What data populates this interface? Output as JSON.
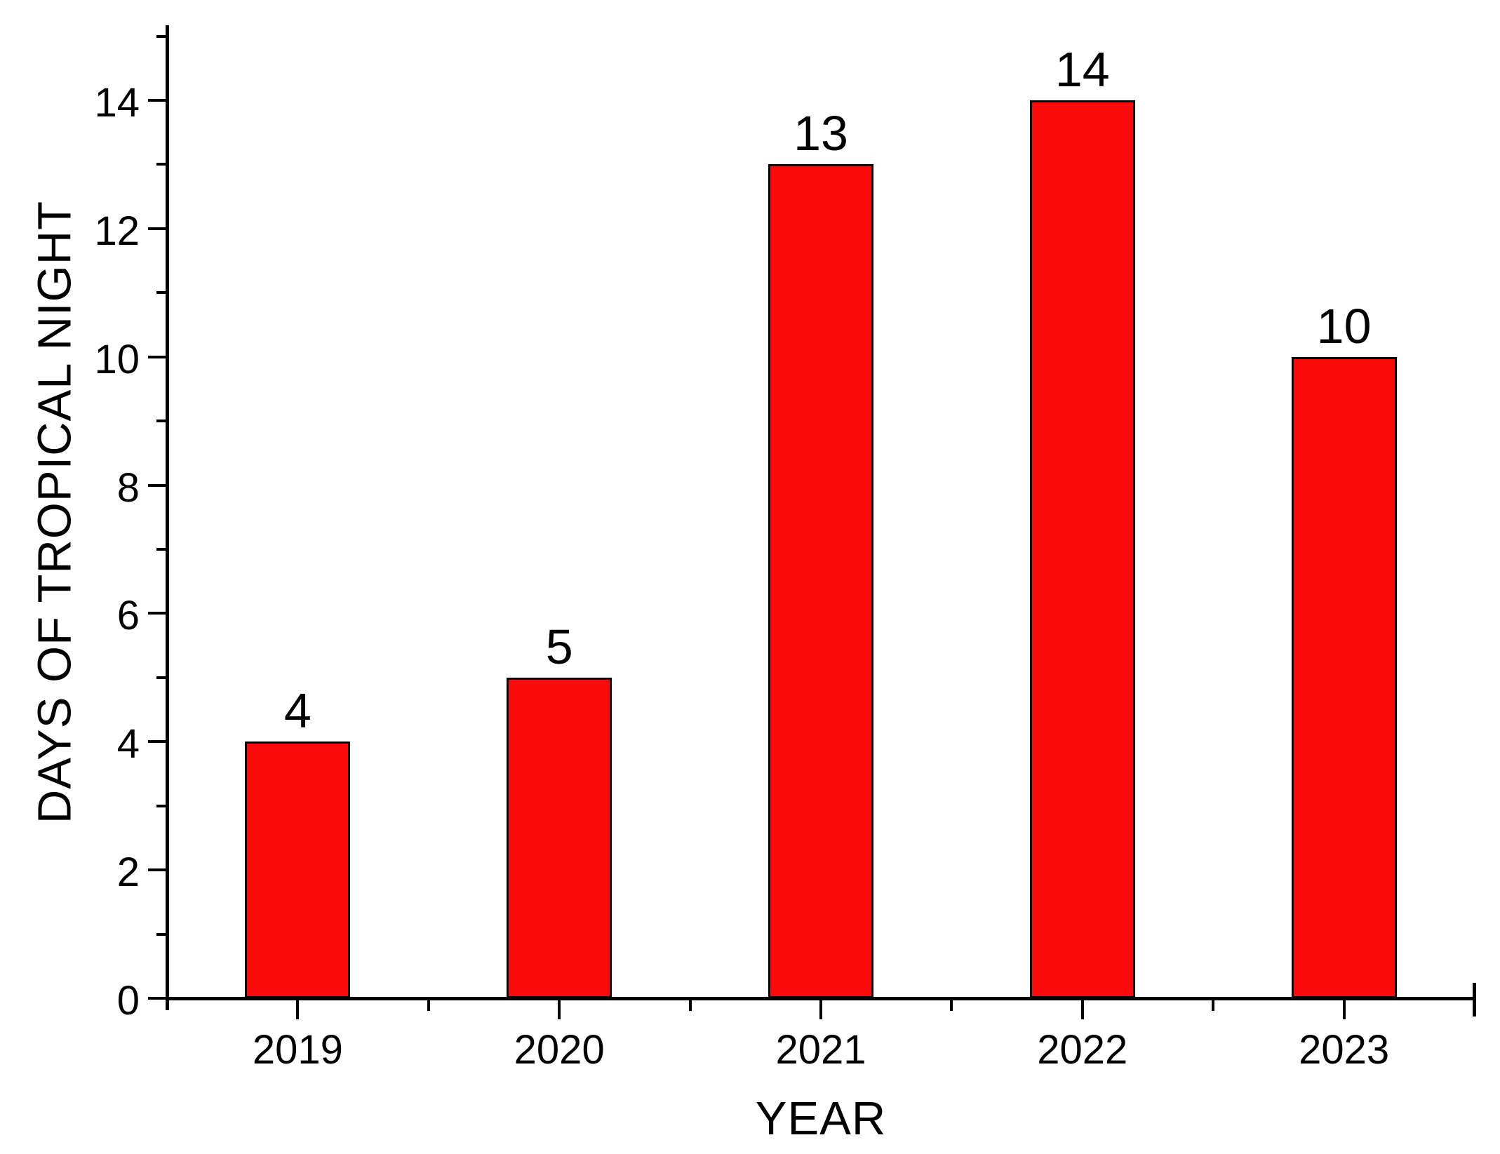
{
  "chart_data": {
    "type": "bar",
    "title": "",
    "xlabel": "YEAR",
    "ylabel": "DAYS OF TROPICAL NIGHT",
    "categories": [
      "2019",
      "2020",
      "2021",
      "2022",
      "2023"
    ],
    "values": [
      4,
      5,
      13,
      14,
      10
    ],
    "data_labels": [
      "4",
      "5",
      "13",
      "14",
      "10"
    ],
    "ylim": [
      0,
      15.15
    ],
    "yticks_major": [
      0,
      2,
      4,
      6,
      8,
      10,
      12,
      14
    ],
    "yticks_minor": [
      1,
      3,
      5,
      7,
      9,
      11,
      13,
      15
    ],
    "grid": false,
    "legend": null,
    "bar_color": "#fa0a0a",
    "bar_border_color": "#000000",
    "axis_color": "#000000",
    "text_color": "#000000",
    "background_color": "#ffffff"
  }
}
